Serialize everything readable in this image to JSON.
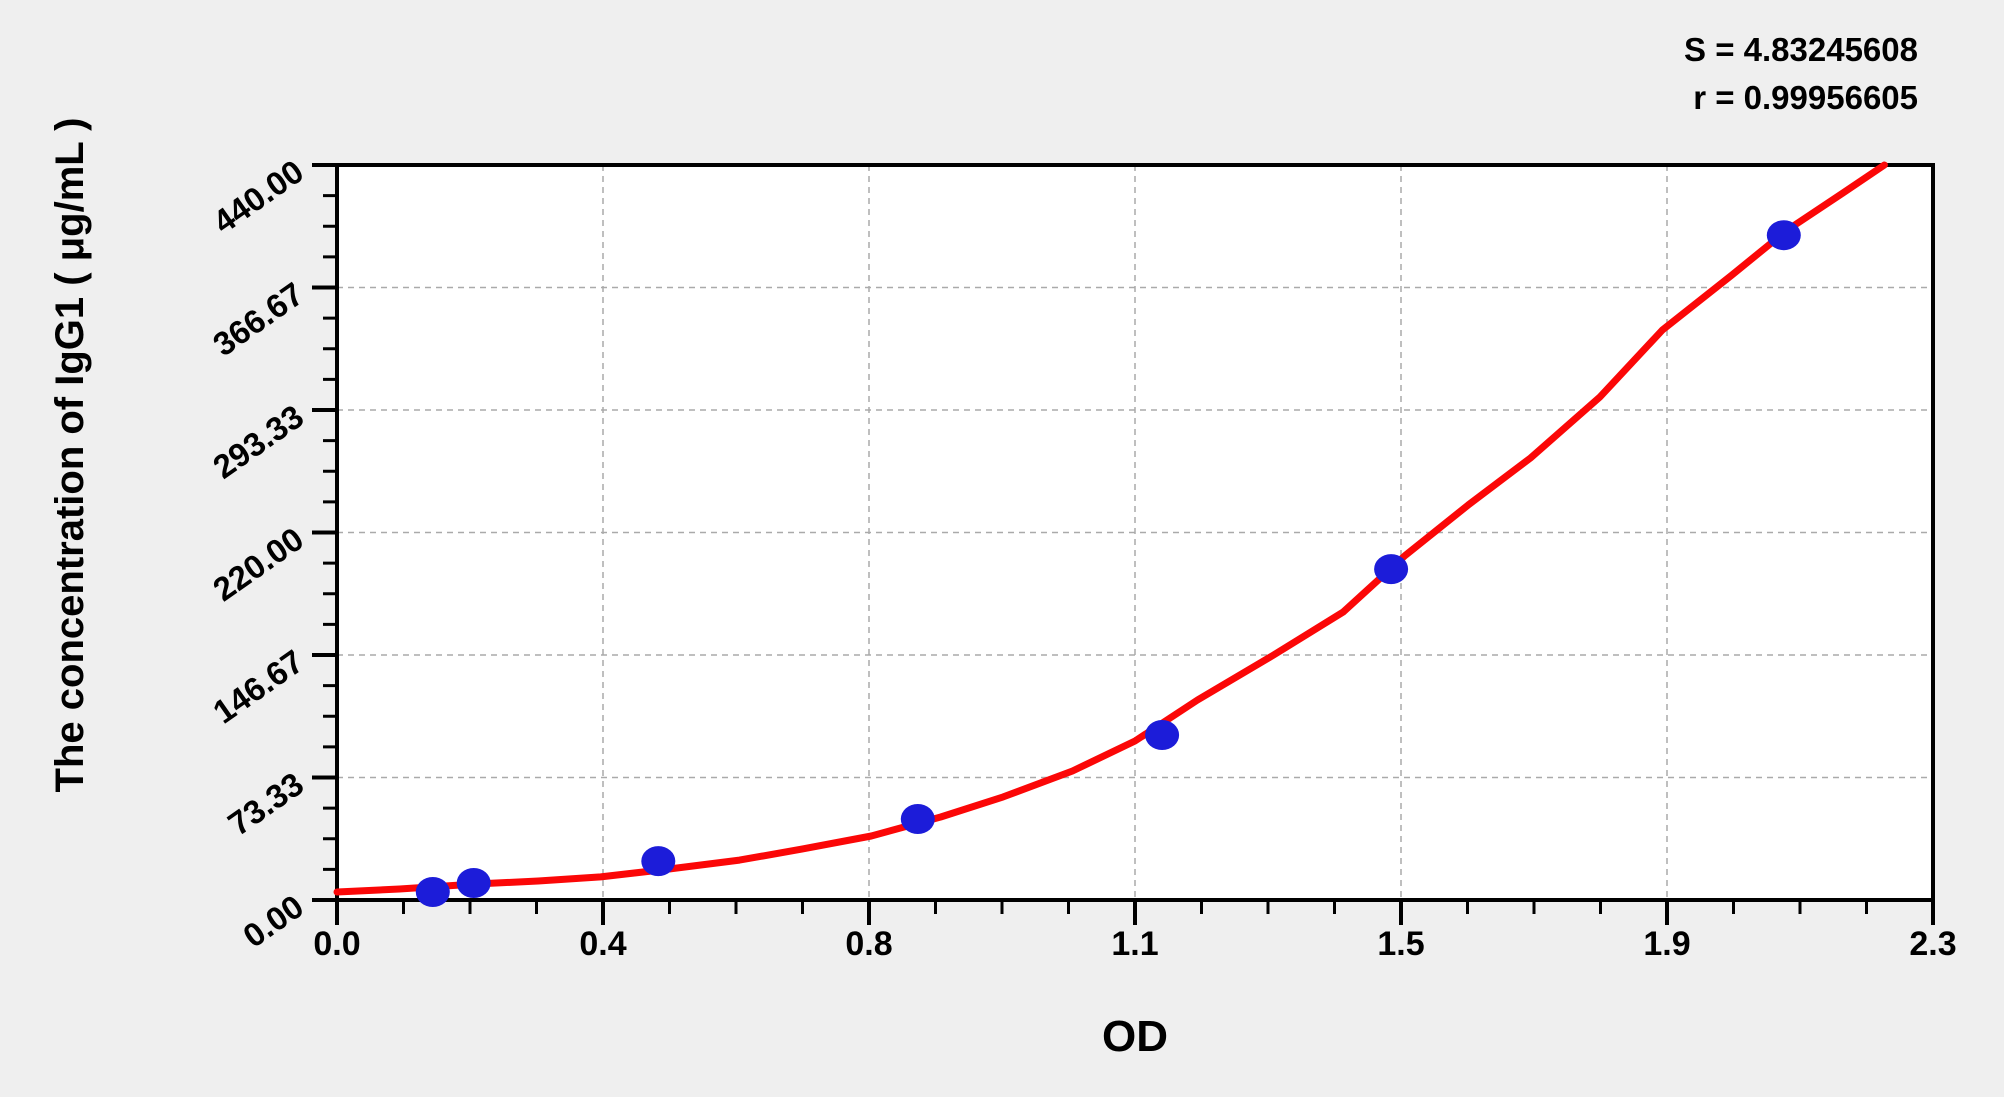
{
  "annotations": {
    "s_line": "S = 4.83245608",
    "r_line": "r = 0.99956605"
  },
  "chart_data": {
    "type": "scatter",
    "title": "",
    "xlabel": "OD",
    "ylabel": "The concentration of IgG1 ( μg/mL )",
    "xlim": [
      0,
      2.3
    ],
    "ylim": [
      0,
      440
    ],
    "x_tick_labels": [
      "0.0",
      "0.4",
      "0.8",
      "1.1",
      "1.5",
      "1.9",
      "2.3"
    ],
    "y_tick_labels": [
      "0.00",
      "73.33",
      "146.67",
      "220.00",
      "293.33",
      "366.67",
      "440.00"
    ],
    "minor_ticks_between_major": 3,
    "grid": {
      "show": true,
      "style": "dashed",
      "at_major_ticks": true,
      "color": "#aaaaaa"
    },
    "legend_position": "none",
    "colors": {
      "background": "#efefef",
      "plot_background": "#ffffff",
      "axis": "#000000",
      "grid": "#aaaaaa",
      "curve": "#fb0707",
      "points": "#1c1cd9"
    },
    "series": [
      {
        "name": "standard points",
        "type": "scatter",
        "color": "#1c1cd9",
        "points": [
          [
            0.138,
            4.8
          ],
          [
            0.197,
            10.2
          ],
          [
            0.463,
            23.3
          ],
          [
            0.837,
            48.5
          ],
          [
            1.189,
            98.8
          ],
          [
            1.519,
            198.1
          ],
          [
            2.085,
            398.0
          ]
        ]
      },
      {
        "name": "fitted curve",
        "type": "line",
        "color": "#fb0707",
        "points": [
          [
            0.0,
            4.8
          ],
          [
            0.09,
            6.6
          ],
          [
            0.2,
            9.6
          ],
          [
            0.29,
            11.4
          ],
          [
            0.38,
            13.8
          ],
          [
            0.48,
            18.6
          ],
          [
            0.58,
            23.9
          ],
          [
            0.67,
            30.5
          ],
          [
            0.77,
            38.3
          ],
          [
            0.87,
            49.7
          ],
          [
            0.96,
            61.7
          ],
          [
            1.06,
            77.2
          ],
          [
            1.15,
            95.2
          ],
          [
            1.24,
            119.7
          ],
          [
            1.35,
            146.7
          ],
          [
            1.45,
            172.4
          ],
          [
            1.54,
            206.5
          ],
          [
            1.63,
            236.4
          ],
          [
            1.72,
            264.6
          ],
          [
            1.82,
            301.1
          ],
          [
            1.91,
            341.2
          ],
          [
            2.01,
            374.1
          ],
          [
            2.09,
            401.1
          ],
          [
            2.17,
            423.2
          ],
          [
            2.23,
            440.0
          ]
        ]
      }
    ]
  }
}
